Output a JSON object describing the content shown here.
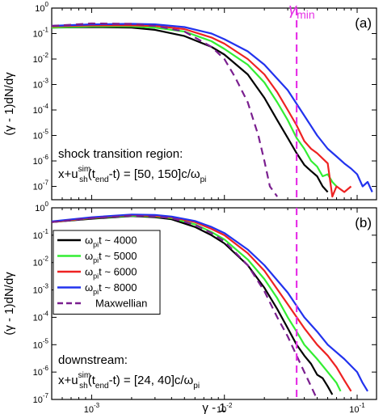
{
  "chart_data": [
    {
      "type": "line",
      "panel": "(a)",
      "xlabel": "",
      "ylabel": "(γ - 1)dN/dγ",
      "xscale": "log",
      "yscale": "log",
      "xlim": [
        0.0005,
        0.14
      ],
      "ylim": [
        3e-08,
        1
      ],
      "x_ticks": [
        {
          "v": 0.001,
          "base": "10",
          "exp": "-3"
        },
        {
          "v": 0.01,
          "base": "10",
          "exp": "-2"
        },
        {
          "v": 0.1,
          "base": "10",
          "exp": "-1"
        }
      ],
      "y_ticks": [
        {
          "v": 1,
          "base": "10",
          "exp": "0"
        },
        {
          "v": 0.1,
          "base": "10",
          "exp": "-1"
        },
        {
          "v": 0.01,
          "base": "10",
          "exp": "-2"
        },
        {
          "v": 0.001,
          "base": "10",
          "exp": "-3"
        },
        {
          "v": 0.0001,
          "base": "10",
          "exp": "-4"
        },
        {
          "v": 1e-05,
          "base": "10",
          "exp": "-5"
        },
        {
          "v": 1e-06,
          "base": "10",
          "exp": "-6"
        },
        {
          "v": 1e-07,
          "base": "10",
          "exp": "-7"
        }
      ],
      "annotation": {
        "line1": "shock transition region:",
        "pre": "x+u",
        "sup": "sim",
        "sub": "sh",
        "mid": "(t",
        "sub2": "end",
        "post": "-t) = [50, 150]c/ω",
        "sub3": "pi"
      },
      "vline": {
        "x": 0.035,
        "label_symbol": "γ",
        "label_sub": "min",
        "color": "#e633e6"
      },
      "series": [
        {
          "color": "#000000",
          "dashed": false,
          "x": [
            0.0005,
            0.001,
            0.002,
            0.003,
            0.005,
            0.008,
            0.01,
            0.015,
            0.02,
            0.025,
            0.03,
            0.035,
            0.04,
            0.045,
            0.05,
            0.055,
            0.06
          ],
          "y": [
            0.17,
            0.18,
            0.17,
            0.14,
            0.08,
            0.03,
            0.015,
            0.0025,
            0.0003,
            4e-05,
            8e-06,
            2e-06,
            7e-07,
            4e-07,
            2.5e-07,
            1e-07,
            6e-08
          ]
        },
        {
          "color": "#33ee33",
          "dashed": false,
          "x": [
            0.0005,
            0.001,
            0.002,
            0.003,
            0.005,
            0.008,
            0.01,
            0.015,
            0.02,
            0.025,
            0.03,
            0.035,
            0.04,
            0.045,
            0.05,
            0.055,
            0.06,
            0.065,
            0.07
          ],
          "y": [
            0.17,
            0.19,
            0.19,
            0.17,
            0.12,
            0.05,
            0.025,
            0.006,
            0.0012,
            0.0002,
            4e-05,
            8e-06,
            3e-06,
            1e-06,
            6e-07,
            2.5e-07,
            3e-07,
            1.5e-07,
            1e-07
          ]
        },
        {
          "color": "#ee2222",
          "dashed": false,
          "x": [
            0.0005,
            0.001,
            0.002,
            0.003,
            0.005,
            0.008,
            0.01,
            0.015,
            0.02,
            0.025,
            0.03,
            0.035,
            0.04,
            0.045,
            0.05,
            0.06,
            0.065,
            0.07,
            0.08,
            0.09
          ],
          "y": [
            0.19,
            0.21,
            0.21,
            0.2,
            0.15,
            0.07,
            0.04,
            0.01,
            0.0025,
            0.0005,
            0.0001,
            2.5e-05,
            6e-06,
            3e-06,
            2e-06,
            8e-07,
            4e-08,
            1e-07,
            6e-08,
            1e-07
          ]
        },
        {
          "color": "#2233ee",
          "dashed": false,
          "x": [
            0.0005,
            0.001,
            0.002,
            0.003,
            0.005,
            0.008,
            0.01,
            0.015,
            0.02,
            0.03,
            0.04,
            0.05,
            0.06,
            0.07,
            0.08,
            0.09,
            0.1,
            0.11,
            0.12,
            0.13
          ],
          "y": [
            0.2,
            0.23,
            0.24,
            0.23,
            0.18,
            0.1,
            0.06,
            0.02,
            0.006,
            0.0006,
            6e-05,
            1e-05,
            3e-06,
            1.5e-06,
            8e-07,
            5e-07,
            3e-07,
            1e-07,
            1.5e-07,
            6e-08
          ]
        },
        {
          "color": "#7a1f8f",
          "dashed": true,
          "x": [
            0.0005,
            0.001,
            0.002,
            0.003,
            0.005,
            0.008,
            0.01,
            0.012,
            0.015,
            0.018,
            0.02,
            0.022,
            0.025
          ],
          "y": [
            0.2,
            0.25,
            0.24,
            0.2,
            0.12,
            0.03,
            0.01,
            0.002,
            0.0002,
            1e-05,
            1e-06,
            1e-07,
            4e-08
          ]
        }
      ]
    },
    {
      "type": "line",
      "panel": "(b)",
      "xlabel": "γ - 1",
      "ylabel": "(γ - 1)dN/dγ",
      "xscale": "log",
      "yscale": "log",
      "xlim": [
        0.0005,
        0.14
      ],
      "ylim": [
        1e-07,
        1
      ],
      "x_ticks": [
        {
          "v": 0.001,
          "base": "10",
          "exp": "-3"
        },
        {
          "v": 0.01,
          "base": "10",
          "exp": "-2"
        },
        {
          "v": 0.1,
          "base": "10",
          "exp": "-1"
        }
      ],
      "y_ticks": [
        {
          "v": 1,
          "base": "10",
          "exp": "0"
        },
        {
          "v": 0.1,
          "base": "10",
          "exp": "-1"
        },
        {
          "v": 0.01,
          "base": "10",
          "exp": "-2"
        },
        {
          "v": 0.001,
          "base": "10",
          "exp": "-3"
        },
        {
          "v": 0.0001,
          "base": "10",
          "exp": "-4"
        },
        {
          "v": 1e-05,
          "base": "10",
          "exp": "-5"
        },
        {
          "v": 1e-06,
          "base": "10",
          "exp": "-6"
        },
        {
          "v": 1e-07,
          "base": "10",
          "exp": "-7"
        }
      ],
      "annotation": {
        "line1": "downstream:",
        "pre": "x+u",
        "sup": "sim",
        "sub": "sh",
        "mid": "(t",
        "sub2": "end",
        "post": "-t) = [24, 40]c/ω",
        "sub3": "pi"
      },
      "vline": {
        "x": 0.035,
        "color": "#e633e6"
      },
      "legend": {
        "placement": "left",
        "entries": [
          {
            "pre": "ω",
            "sub": "pi",
            "post": "t ~ 4000"
          },
          {
            "pre": "ω",
            "sub": "pi",
            "post": "t ~ 5000"
          },
          {
            "pre": "ω",
            "sub": "pi",
            "post": "t ~ 6000"
          },
          {
            "pre": "ω",
            "sub": "pi",
            "post": "t ~ 8000"
          },
          {
            "pre": "",
            "sub": "",
            "post": "Maxwellian"
          }
        ]
      },
      "series": [
        {
          "color": "#000000",
          "dashed": false,
          "x": [
            0.0005,
            0.001,
            0.002,
            0.003,
            0.004,
            0.006,
            0.008,
            0.01,
            0.015,
            0.02,
            0.025,
            0.03,
            0.035,
            0.04,
            0.045,
            0.05,
            0.055,
            0.06,
            0.065
          ],
          "y": [
            0.3,
            0.4,
            0.5,
            0.45,
            0.38,
            0.2,
            0.1,
            0.05,
            0.008,
            0.0012,
            0.0002,
            4e-05,
            1e-05,
            4e-06,
            2e-06,
            8e-07,
            6e-07,
            3e-07,
            1.5e-07
          ]
        },
        {
          "color": "#33ee33",
          "dashed": false,
          "x": [
            0.0005,
            0.001,
            0.002,
            0.003,
            0.004,
            0.006,
            0.008,
            0.01,
            0.015,
            0.02,
            0.025,
            0.03,
            0.035,
            0.04,
            0.05,
            0.06,
            0.07,
            0.075
          ],
          "y": [
            0.3,
            0.42,
            0.52,
            0.48,
            0.42,
            0.25,
            0.13,
            0.07,
            0.013,
            0.0025,
            0.0005,
            0.0001,
            3e-05,
            1e-05,
            3e-06,
            1e-06,
            4e-07,
            2e-07
          ]
        },
        {
          "color": "#ee2222",
          "dashed": false,
          "x": [
            0.0005,
            0.001,
            0.002,
            0.003,
            0.004,
            0.006,
            0.008,
            0.01,
            0.015,
            0.02,
            0.03,
            0.04,
            0.05,
            0.06,
            0.07,
            0.08,
            0.09
          ],
          "y": [
            0.3,
            0.43,
            0.55,
            0.5,
            0.45,
            0.3,
            0.17,
            0.1,
            0.022,
            0.005,
            0.0003,
            4e-05,
            1e-05,
            4e-06,
            1.5e-06,
            5e-07,
            2e-07
          ]
        },
        {
          "color": "#2233ee",
          "dashed": false,
          "x": [
            0.0005,
            0.001,
            0.002,
            0.003,
            0.004,
            0.006,
            0.008,
            0.01,
            0.015,
            0.02,
            0.03,
            0.04,
            0.05,
            0.06,
            0.08,
            0.1,
            0.11,
            0.12
          ],
          "y": [
            0.32,
            0.45,
            0.57,
            0.55,
            0.48,
            0.33,
            0.2,
            0.12,
            0.03,
            0.008,
            0.0008,
            0.0001,
            3e-05,
            1e-05,
            3e-06,
            1e-06,
            4e-07,
            2e-07
          ]
        },
        {
          "color": "#7a1f8f",
          "dashed": true,
          "x": [
            0.0005,
            0.001,
            0.002,
            0.003,
            0.004,
            0.006,
            0.008,
            0.01,
            0.015,
            0.02,
            0.025,
            0.03,
            0.035,
            0.04,
            0.045,
            0.05
          ],
          "y": [
            0.3,
            0.42,
            0.52,
            0.48,
            0.42,
            0.24,
            0.12,
            0.06,
            0.008,
            0.0009,
            0.0001,
            2e-05,
            4e-06,
            1e-06,
            3e-07,
            1e-07
          ]
        }
      ]
    }
  ]
}
